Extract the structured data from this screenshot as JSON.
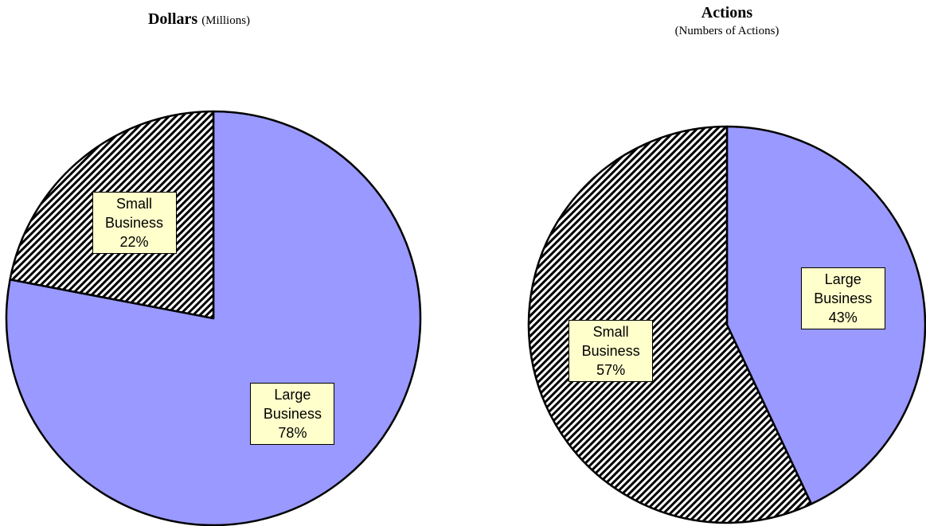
{
  "chart_data": [
    {
      "type": "pie",
      "title": "Dollars",
      "subtitle": "(Millions)",
      "categories": [
        "Large Business",
        "Small Business"
      ],
      "values": [
        78,
        22
      ],
      "value_labels": [
        "78%",
        "22%"
      ],
      "colors": [
        "#9999ff",
        "#993366"
      ],
      "hatch": [
        false,
        true
      ]
    },
    {
      "type": "pie",
      "title": "Actions",
      "subtitle": "(Numbers of Actions)",
      "categories": [
        "Large Business",
        "Small Business"
      ],
      "values": [
        43,
        57
      ],
      "value_labels": [
        "43%",
        "57%"
      ],
      "colors": [
        "#9999ff",
        "#993366"
      ],
      "hatch": [
        false,
        true
      ]
    }
  ]
}
